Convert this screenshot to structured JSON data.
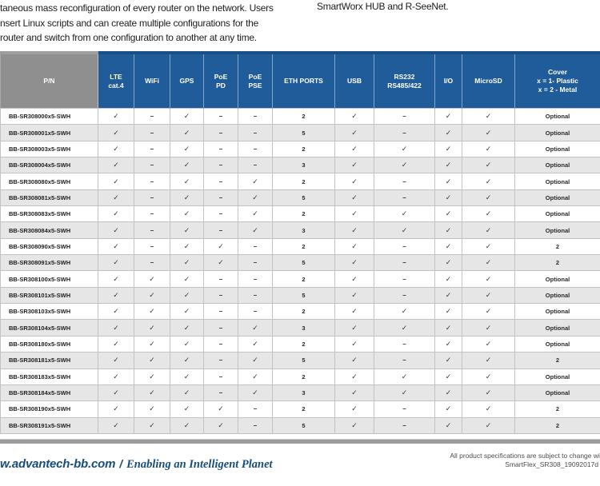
{
  "intro": {
    "left_lines": [
      "taneous mass reconfiguration of every router on the network. Users",
      "nsert Linux scripts and can create multiple configurations for the",
      "router and switch from one configuration to another at any time."
    ],
    "right_text": "SmartWorx HUB and R-SeeNet."
  },
  "table": {
    "columns": [
      {
        "key": "pn",
        "label": "P/N"
      },
      {
        "key": "lte",
        "label": "LTE\ncat.4"
      },
      {
        "key": "wifi",
        "label": "WiFi"
      },
      {
        "key": "gps",
        "label": "GPS"
      },
      {
        "key": "poe_pd",
        "label": "PoE\nPD"
      },
      {
        "key": "poe_pse",
        "label": "PoE\nPSE"
      },
      {
        "key": "eth",
        "label": "ETH PORTS"
      },
      {
        "key": "usb",
        "label": "USB"
      },
      {
        "key": "serial",
        "label": "RS232\nRS485/422"
      },
      {
        "key": "io",
        "label": "I/O"
      },
      {
        "key": "microsd",
        "label": "MicroSD"
      },
      {
        "key": "cover",
        "label": "Cover\nx = 1- Plastic\nx = 2 - Metal"
      }
    ],
    "symbols": {
      "check": "✓",
      "dash": "–"
    },
    "rows": [
      [
        "BB-SR308000x5-SWH",
        "check",
        "dash",
        "check",
        "dash",
        "dash",
        "2",
        "check",
        "dash",
        "check",
        "check",
        "Optional"
      ],
      [
        "BB-SR308001x5-SWH",
        "check",
        "dash",
        "check",
        "dash",
        "dash",
        "5",
        "check",
        "dash",
        "check",
        "check",
        "Optional"
      ],
      [
        "BB-SR308003x5-SWH",
        "check",
        "dash",
        "check",
        "dash",
        "dash",
        "2",
        "check",
        "check",
        "check",
        "check",
        "Optional"
      ],
      [
        "BB-SR308004x5-SWH",
        "check",
        "dash",
        "check",
        "dash",
        "dash",
        "3",
        "check",
        "check",
        "check",
        "check",
        "Optional"
      ],
      [
        "BB-SR308080x5-SWH",
        "check",
        "dash",
        "check",
        "dash",
        "check",
        "2",
        "check",
        "dash",
        "check",
        "check",
        "Optional"
      ],
      [
        "BB-SR308081x5-SWH",
        "check",
        "dash",
        "check",
        "dash",
        "check",
        "5",
        "check",
        "dash",
        "check",
        "check",
        "Optional"
      ],
      [
        "BB-SR308083x5-SWH",
        "check",
        "dash",
        "check",
        "dash",
        "check",
        "2",
        "check",
        "check",
        "check",
        "check",
        "Optional"
      ],
      [
        "BB-SR308084x5-SWH",
        "check",
        "dash",
        "check",
        "dash",
        "check",
        "3",
        "check",
        "check",
        "check",
        "check",
        "Optional"
      ],
      [
        "BB-SR308090x5-SWH",
        "check",
        "dash",
        "check",
        "check",
        "dash",
        "2",
        "check",
        "dash",
        "check",
        "check",
        "2"
      ],
      [
        "BB-SR308091x5-SWH",
        "check",
        "dash",
        "check",
        "check",
        "dash",
        "5",
        "check",
        "dash",
        "check",
        "check",
        "2"
      ],
      [
        "BB-SR308100x5-SWH",
        "check",
        "check",
        "check",
        "dash",
        "dash",
        "2",
        "check",
        "dash",
        "check",
        "check",
        "Optional"
      ],
      [
        "BB-SR308101x5-SWH",
        "check",
        "check",
        "check",
        "dash",
        "dash",
        "5",
        "check",
        "dash",
        "check",
        "check",
        "Optional"
      ],
      [
        "BB-SR308103x5-SWH",
        "check",
        "check",
        "check",
        "dash",
        "dash",
        "2",
        "check",
        "check",
        "check",
        "check",
        "Optional"
      ],
      [
        "BB-SR308104x5-SWH",
        "check",
        "check",
        "check",
        "dash",
        "check",
        "3",
        "check",
        "check",
        "check",
        "check",
        "Optional"
      ],
      [
        "BB-SR308180x5-SWH",
        "check",
        "check",
        "check",
        "dash",
        "check",
        "2",
        "check",
        "dash",
        "check",
        "check",
        "Optional"
      ],
      [
        "BB-SR308181x5-SWH",
        "check",
        "check",
        "check",
        "dash",
        "check",
        "5",
        "check",
        "dash",
        "check",
        "check",
        "2"
      ],
      [
        "BB-SR308183x5-SWH",
        "check",
        "check",
        "check",
        "dash",
        "check",
        "2",
        "check",
        "check",
        "check",
        "check",
        "Optional"
      ],
      [
        "BB-SR308184x5-SWH",
        "check",
        "check",
        "check",
        "dash",
        "check",
        "3",
        "check",
        "check",
        "check",
        "check",
        "Optional"
      ],
      [
        "BB-SR308190x5-SWH",
        "check",
        "check",
        "check",
        "check",
        "dash",
        "2",
        "check",
        "dash",
        "check",
        "check",
        "2"
      ],
      [
        "BB-SR308191x5-SWH",
        "check",
        "check",
        "check",
        "check",
        "dash",
        "5",
        "check",
        "dash",
        "check",
        "check",
        "2"
      ]
    ]
  },
  "footer": {
    "website": "w.advantech-bb.com",
    "separator": "/",
    "tagline": "Enabling an Intelligent Planet",
    "note_line1": "All product specifications are subject to change with",
    "note_line2": "SmartFlex_SR308_19092017d"
  },
  "colors": {
    "header_blue": "#1f5c99",
    "header_gray": "#8f8f8f",
    "row_alt_gray": "#e6e6e6",
    "footer_blue": "#174e7d",
    "divider_gray": "#9c9c9c"
  }
}
